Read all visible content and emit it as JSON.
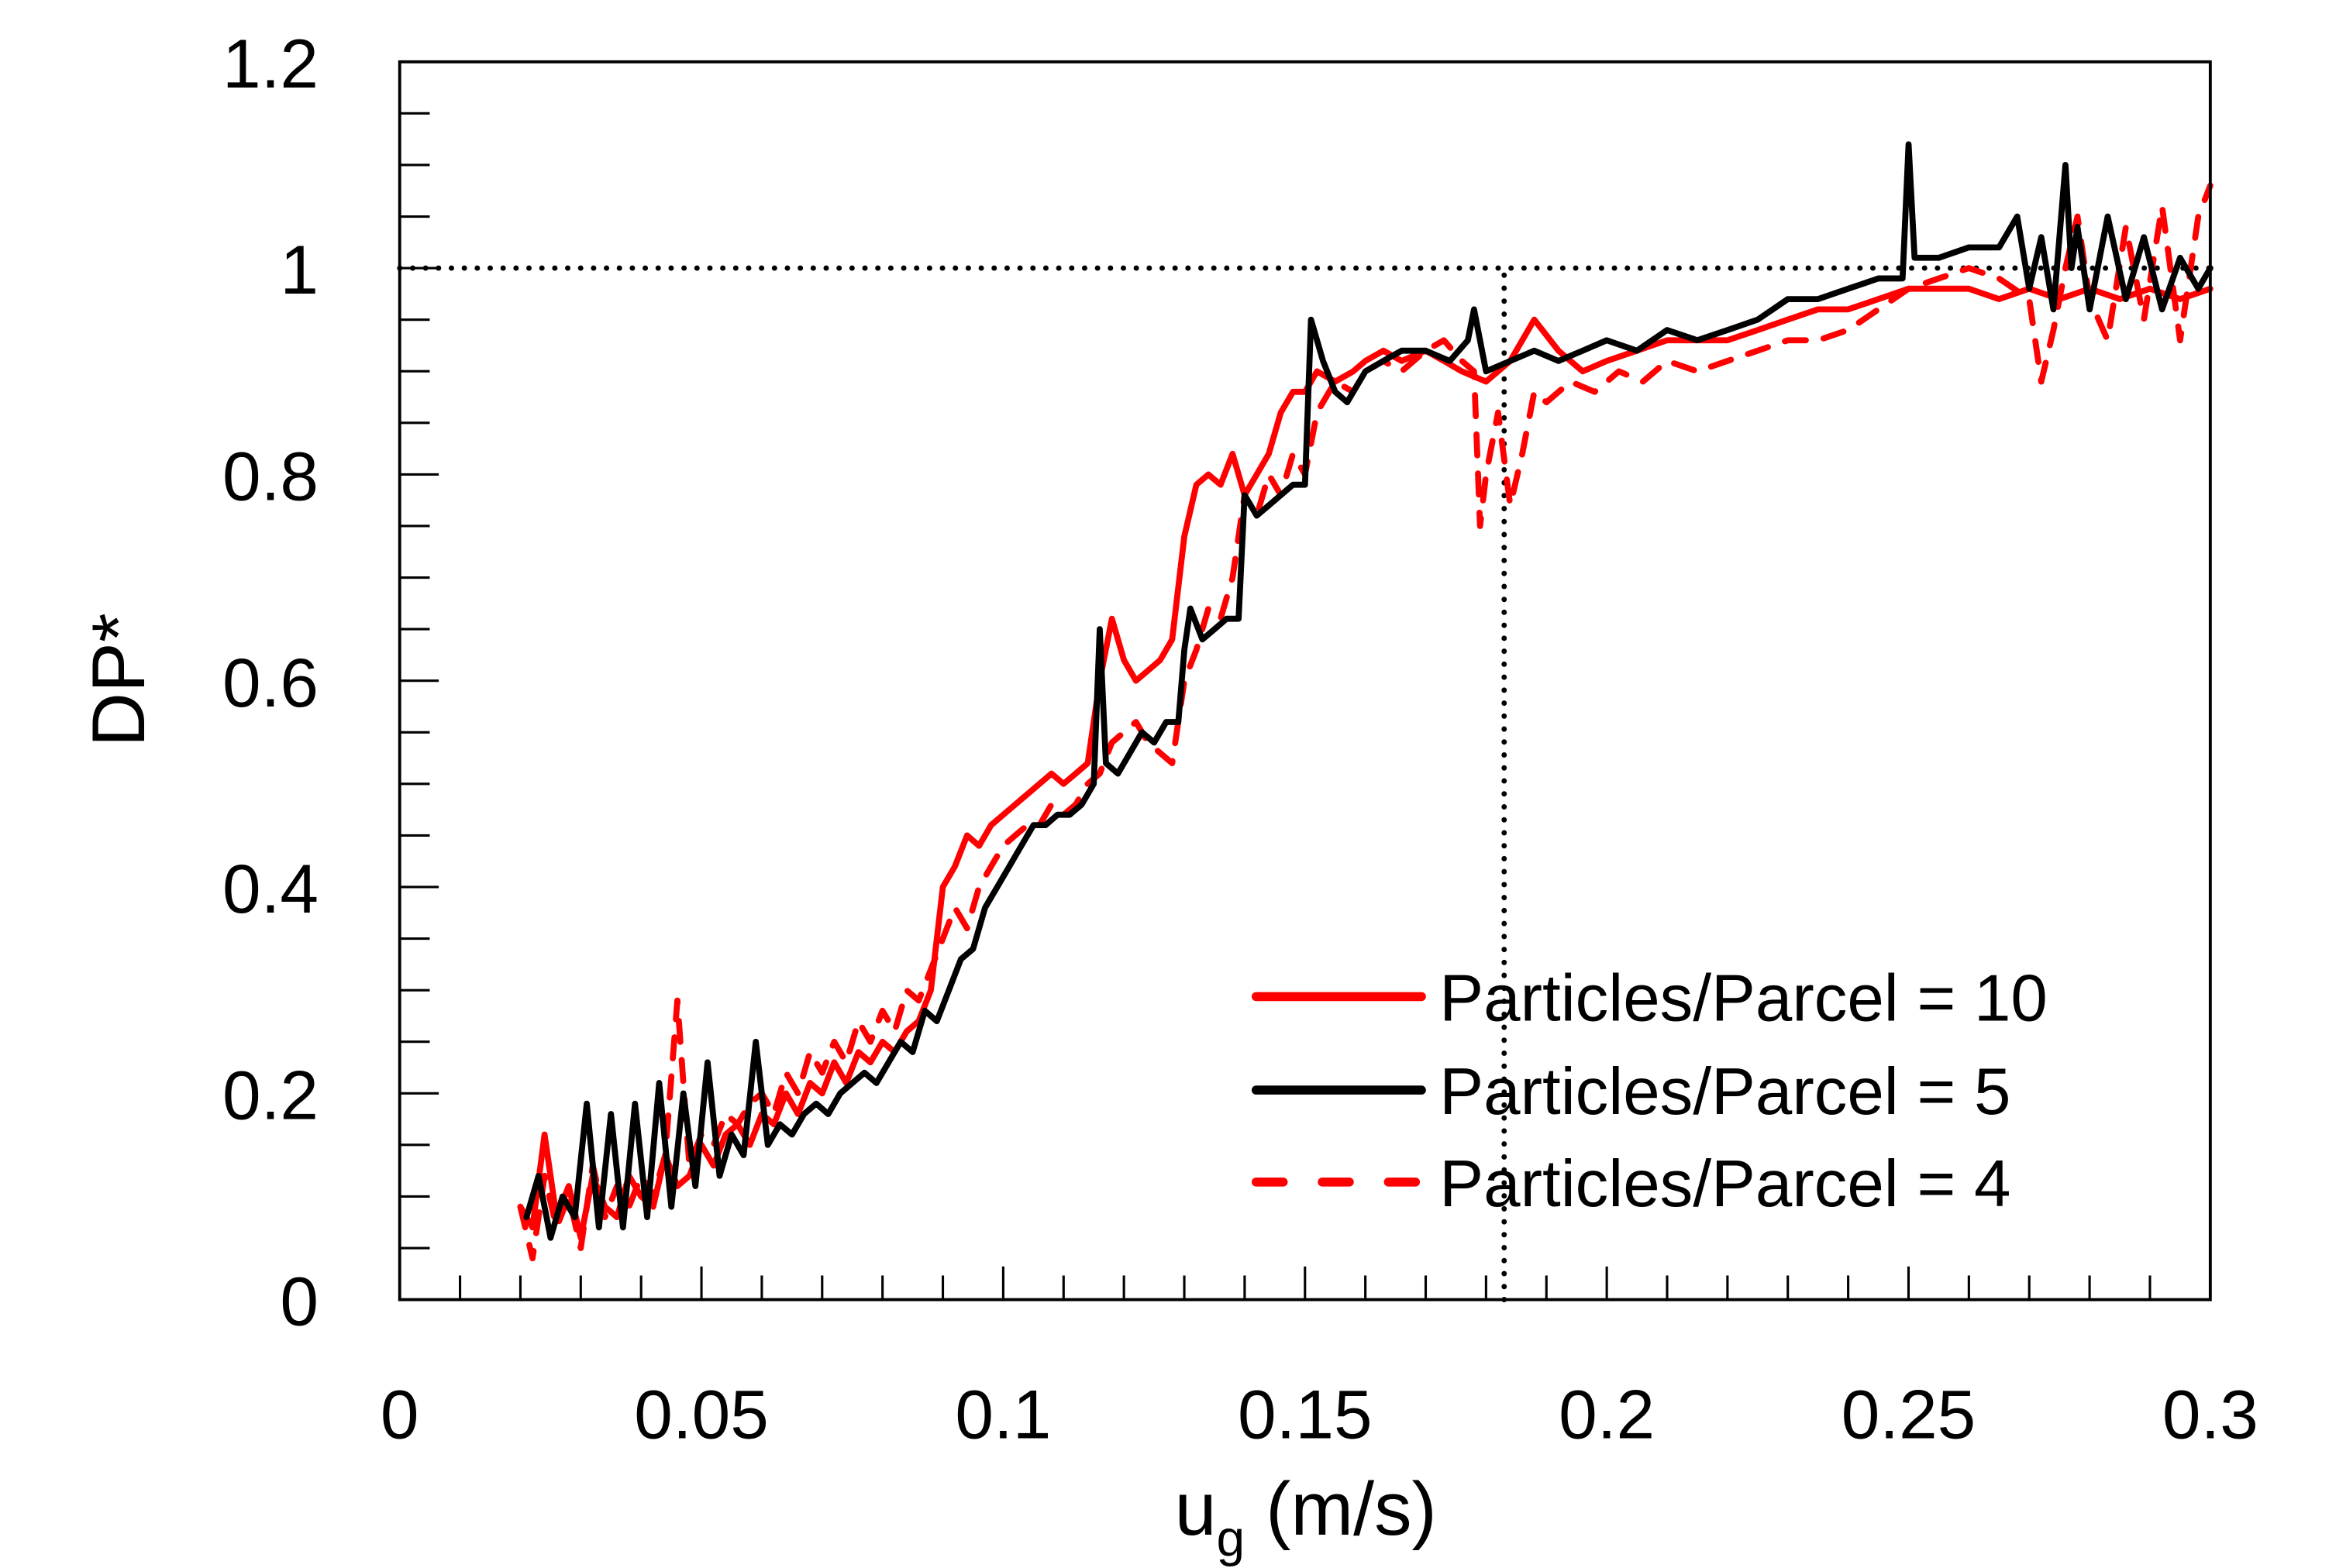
{
  "chart_data": {
    "type": "line",
    "title": "",
    "xlabel_main": "u",
    "xlabel_sub": "g",
    "xlabel_unit": " (m/s)",
    "xlabel": "u_g (m/s)",
    "ylabel": "DP*",
    "xlim": [
      0,
      0.3
    ],
    "ylim": [
      0,
      1.2
    ],
    "xticks": [
      0,
      0.05,
      0.1,
      0.15,
      0.2,
      0.25,
      0.3
    ],
    "xtick_labels": [
      "0",
      "0.05",
      "0.1",
      "0.15",
      "0.2",
      "0.25",
      "0.3"
    ],
    "x_minor_step": 0.01,
    "yticks": [
      0,
      0.2,
      0.4,
      0.6,
      0.8,
      1,
      1.2
    ],
    "ytick_labels": [
      "0",
      "0.2",
      "0.4",
      "0.6",
      "0.8",
      "1",
      "1.2"
    ],
    "y_minor_step": 0.05,
    "grid": false,
    "legend_position": "bottom-right",
    "reference_lines": [
      {
        "orientation": "horizontal",
        "value": 1.0,
        "from_x": 0,
        "to_x": 0.3,
        "style": "dotted",
        "color": "#000000"
      },
      {
        "orientation": "vertical",
        "value": 0.183,
        "from_y": 0,
        "to_y": 1.0,
        "style": "dotted",
        "color": "#000000"
      }
    ],
    "series": [
      {
        "name": "Particles/Parcel = 10",
        "color": "#ff0000",
        "style": "solid",
        "x": [
          0.02,
          0.022,
          0.024,
          0.026,
          0.028,
          0.03,
          0.032,
          0.034,
          0.036,
          0.038,
          0.04,
          0.042,
          0.044,
          0.046,
          0.048,
          0.05,
          0.052,
          0.054,
          0.056,
          0.058,
          0.06,
          0.062,
          0.064,
          0.066,
          0.068,
          0.07,
          0.072,
          0.074,
          0.076,
          0.078,
          0.08,
          0.082,
          0.084,
          0.086,
          0.088,
          0.09,
          0.092,
          0.094,
          0.096,
          0.098,
          0.1,
          0.102,
          0.104,
          0.106,
          0.108,
          0.11,
          0.112,
          0.114,
          0.116,
          0.118,
          0.12,
          0.122,
          0.124,
          0.126,
          0.128,
          0.13,
          0.132,
          0.134,
          0.136,
          0.138,
          0.14,
          0.142,
          0.144,
          0.146,
          0.148,
          0.15,
          0.152,
          0.155,
          0.158,
          0.16,
          0.163,
          0.166,
          0.17,
          0.173,
          0.176,
          0.18,
          0.184,
          0.188,
          0.192,
          0.196,
          0.2,
          0.205,
          0.21,
          0.215,
          0.22,
          0.225,
          0.23,
          0.235,
          0.24,
          0.245,
          0.25,
          0.255,
          0.26,
          0.265,
          0.27,
          0.275,
          0.28,
          0.285,
          0.29,
          0.295,
          0.3
        ],
        "y": [
          0.09,
          0.07,
          0.16,
          0.08,
          0.11,
          0.06,
          0.12,
          0.09,
          0.08,
          0.12,
          0.1,
          0.09,
          0.14,
          0.11,
          0.12,
          0.15,
          0.13,
          0.16,
          0.17,
          0.15,
          0.18,
          0.17,
          0.2,
          0.18,
          0.21,
          0.2,
          0.23,
          0.21,
          0.24,
          0.23,
          0.25,
          0.24,
          0.26,
          0.27,
          0.3,
          0.4,
          0.42,
          0.45,
          0.44,
          0.46,
          0.47,
          0.48,
          0.49,
          0.5,
          0.51,
          0.5,
          0.51,
          0.52,
          0.6,
          0.66,
          0.62,
          0.6,
          0.61,
          0.62,
          0.64,
          0.74,
          0.79,
          0.8,
          0.79,
          0.82,
          0.78,
          0.8,
          0.82,
          0.86,
          0.88,
          0.88,
          0.9,
          0.89,
          0.9,
          0.91,
          0.92,
          0.91,
          0.92,
          0.91,
          0.9,
          0.89,
          0.91,
          0.95,
          0.92,
          0.9,
          0.91,
          0.92,
          0.93,
          0.93,
          0.93,
          0.94,
          0.95,
          0.96,
          0.96,
          0.97,
          0.98,
          0.98,
          0.98,
          0.97,
          0.98,
          0.97,
          0.98,
          0.97,
          0.98,
          0.97,
          0.98
        ]
      },
      {
        "name": "Particles/Parcel = 5",
        "color": "#000000",
        "style": "solid",
        "x": [
          0.021,
          0.023,
          0.025,
          0.027,
          0.029,
          0.031,
          0.033,
          0.035,
          0.037,
          0.039,
          0.041,
          0.043,
          0.045,
          0.047,
          0.049,
          0.051,
          0.053,
          0.055,
          0.057,
          0.059,
          0.061,
          0.063,
          0.065,
          0.067,
          0.069,
          0.071,
          0.073,
          0.075,
          0.077,
          0.079,
          0.081,
          0.083,
          0.085,
          0.087,
          0.089,
          0.091,
          0.093,
          0.095,
          0.097,
          0.099,
          0.101,
          0.103,
          0.105,
          0.107,
          0.109,
          0.111,
          0.113,
          0.115,
          0.116,
          0.117,
          0.119,
          0.121,
          0.123,
          0.125,
          0.127,
          0.129,
          0.13,
          0.131,
          0.133,
          0.135,
          0.137,
          0.139,
          0.14,
          0.142,
          0.144,
          0.146,
          0.148,
          0.15,
          0.151,
          0.153,
          0.155,
          0.157,
          0.16,
          0.163,
          0.166,
          0.17,
          0.174,
          0.177,
          0.178,
          0.18,
          0.184,
          0.188,
          0.192,
          0.196,
          0.2,
          0.205,
          0.21,
          0.215,
          0.22,
          0.225,
          0.23,
          0.235,
          0.24,
          0.245,
          0.249,
          0.25,
          0.251,
          0.255,
          0.26,
          0.265,
          0.268,
          0.27,
          0.272,
          0.274,
          0.276,
          0.277,
          0.278,
          0.28,
          0.283,
          0.286,
          0.289,
          0.292,
          0.295,
          0.298,
          0.3
        ],
        "y": [
          0.08,
          0.12,
          0.06,
          0.1,
          0.08,
          0.19,
          0.07,
          0.18,
          0.07,
          0.19,
          0.08,
          0.21,
          0.09,
          0.2,
          0.11,
          0.23,
          0.12,
          0.16,
          0.14,
          0.25,
          0.15,
          0.17,
          0.16,
          0.18,
          0.19,
          0.18,
          0.2,
          0.21,
          0.22,
          0.21,
          0.23,
          0.25,
          0.24,
          0.28,
          0.27,
          0.3,
          0.33,
          0.34,
          0.38,
          0.4,
          0.42,
          0.44,
          0.46,
          0.46,
          0.47,
          0.47,
          0.48,
          0.5,
          0.65,
          0.52,
          0.51,
          0.53,
          0.55,
          0.54,
          0.56,
          0.56,
          0.63,
          0.67,
          0.64,
          0.65,
          0.66,
          0.66,
          0.78,
          0.76,
          0.77,
          0.78,
          0.79,
          0.79,
          0.95,
          0.91,
          0.88,
          0.87,
          0.9,
          0.91,
          0.92,
          0.92,
          0.91,
          0.93,
          0.96,
          0.9,
          0.91,
          0.92,
          0.91,
          0.92,
          0.93,
          0.92,
          0.94,
          0.93,
          0.94,
          0.95,
          0.97,
          0.97,
          0.98,
          0.99,
          0.99,
          1.12,
          1.01,
          1.01,
          1.02,
          1.02,
          1.05,
          0.98,
          1.03,
          0.96,
          1.1,
          1.0,
          1.04,
          0.96,
          1.05,
          0.97,
          1.03,
          0.96,
          1.01,
          0.98,
          1.0
        ]
      },
      {
        "name": "Particles/Parcel = 4",
        "color": "#ff0000",
        "style": "dashed",
        "x": [
          0.02,
          0.022,
          0.024,
          0.026,
          0.028,
          0.03,
          0.032,
          0.034,
          0.036,
          0.038,
          0.04,
          0.042,
          0.044,
          0.046,
          0.048,
          0.05,
          0.052,
          0.054,
          0.056,
          0.058,
          0.06,
          0.062,
          0.064,
          0.066,
          0.068,
          0.07,
          0.072,
          0.074,
          0.076,
          0.078,
          0.08,
          0.082,
          0.084,
          0.086,
          0.088,
          0.09,
          0.092,
          0.094,
          0.096,
          0.098,
          0.1,
          0.102,
          0.104,
          0.106,
          0.108,
          0.11,
          0.112,
          0.114,
          0.116,
          0.118,
          0.12,
          0.122,
          0.124,
          0.126,
          0.128,
          0.13,
          0.132,
          0.134,
          0.136,
          0.138,
          0.14,
          0.142,
          0.144,
          0.146,
          0.148,
          0.15,
          0.152,
          0.155,
          0.158,
          0.16,
          0.163,
          0.166,
          0.17,
          0.173,
          0.176,
          0.178,
          0.179,
          0.18,
          0.182,
          0.184,
          0.186,
          0.188,
          0.19,
          0.194,
          0.198,
          0.202,
          0.206,
          0.21,
          0.215,
          0.22,
          0.225,
          0.23,
          0.235,
          0.24,
          0.245,
          0.25,
          0.255,
          0.26,
          0.265,
          0.27,
          0.272,
          0.274,
          0.276,
          0.278,
          0.28,
          0.283,
          0.286,
          0.289,
          0.292,
          0.295,
          0.298,
          0.3
        ],
        "y": [
          0.09,
          0.04,
          0.12,
          0.07,
          0.1,
          0.05,
          0.13,
          0.08,
          0.11,
          0.09,
          0.12,
          0.1,
          0.14,
          0.29,
          0.13,
          0.16,
          0.15,
          0.18,
          0.17,
          0.19,
          0.2,
          0.18,
          0.22,
          0.2,
          0.24,
          0.22,
          0.25,
          0.23,
          0.27,
          0.25,
          0.28,
          0.26,
          0.3,
          0.29,
          0.32,
          0.35,
          0.38,
          0.36,
          0.4,
          0.42,
          0.44,
          0.45,
          0.46,
          0.46,
          0.48,
          0.47,
          0.48,
          0.5,
          0.51,
          0.54,
          0.55,
          0.56,
          0.54,
          0.53,
          0.52,
          0.6,
          0.63,
          0.67,
          0.66,
          0.7,
          0.78,
          0.76,
          0.8,
          0.78,
          0.82,
          0.8,
          0.86,
          0.89,
          0.88,
          0.9,
          0.91,
          0.9,
          0.92,
          0.93,
          0.91,
          0.9,
          0.75,
          0.8,
          0.86,
          0.77,
          0.82,
          0.88,
          0.87,
          0.89,
          0.88,
          0.9,
          0.89,
          0.91,
          0.9,
          0.91,
          0.92,
          0.93,
          0.93,
          0.94,
          0.96,
          0.98,
          0.99,
          1.0,
          0.99,
          0.97,
          0.89,
          0.94,
          1.0,
          1.05,
          0.97,
          0.93,
          1.04,
          0.95,
          1.06,
          0.93,
          1.05,
          1.08
        ]
      }
    ]
  }
}
